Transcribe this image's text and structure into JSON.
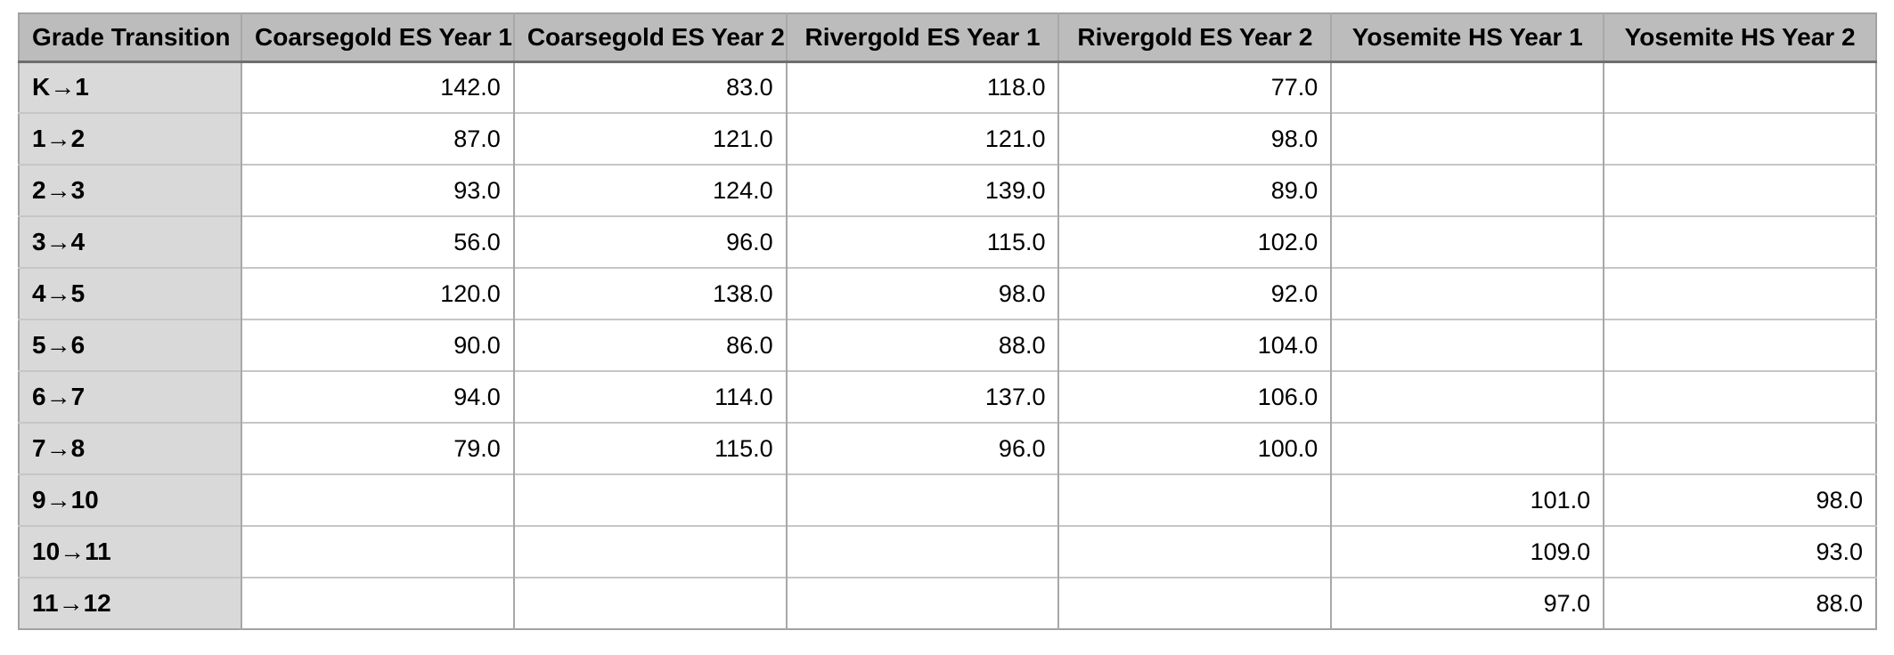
{
  "colors": {
    "page_bg": "#ffffff",
    "header_bg": "#bcbcbc",
    "label_bg": "#d9d9d9",
    "cell_bg": "#ffffff",
    "border_outer": "#a2a2a2",
    "border_vertical": "#a8a8a8",
    "border_horizontal": "#c6c6c6",
    "header_underline": "#6e6e6e",
    "text": "#000000"
  },
  "chart_data": {
    "type": "table",
    "title": "",
    "columns": [
      "Grade Transition",
      "Coarsegold ES Year 1",
      "Coarsegold ES Year 2",
      "Rivergold ES Year 1",
      "Rivergold ES Year 2",
      "Yosemite HS Year 1",
      "Yosemite HS Year 2"
    ],
    "rows": [
      {
        "label": "K→1",
        "values": [
          "142.0",
          "83.0",
          "118.0",
          "77.0",
          "",
          ""
        ]
      },
      {
        "label": "1→2",
        "values": [
          "87.0",
          "121.0",
          "121.0",
          "98.0",
          "",
          ""
        ]
      },
      {
        "label": "2→3",
        "values": [
          "93.0",
          "124.0",
          "139.0",
          "89.0",
          "",
          ""
        ]
      },
      {
        "label": "3→4",
        "values": [
          "56.0",
          "96.0",
          "115.0",
          "102.0",
          "",
          ""
        ]
      },
      {
        "label": "4→5",
        "values": [
          "120.0",
          "138.0",
          "98.0",
          "92.0",
          "",
          ""
        ]
      },
      {
        "label": "5→6",
        "values": [
          "90.0",
          "86.0",
          "88.0",
          "104.0",
          "",
          ""
        ]
      },
      {
        "label": "6→7",
        "values": [
          "94.0",
          "114.0",
          "137.0",
          "106.0",
          "",
          ""
        ]
      },
      {
        "label": "7→8",
        "values": [
          "79.0",
          "115.0",
          "96.0",
          "100.0",
          "",
          ""
        ]
      },
      {
        "label": "9→10",
        "values": [
          "",
          "",
          "",
          "",
          "101.0",
          "98.0"
        ]
      },
      {
        "label": "10→11",
        "values": [
          "",
          "",
          "",
          "",
          "109.0",
          "93.0"
        ]
      },
      {
        "label": "11→12",
        "values": [
          "",
          "",
          "",
          "",
          "97.0",
          "88.0"
        ]
      }
    ]
  }
}
